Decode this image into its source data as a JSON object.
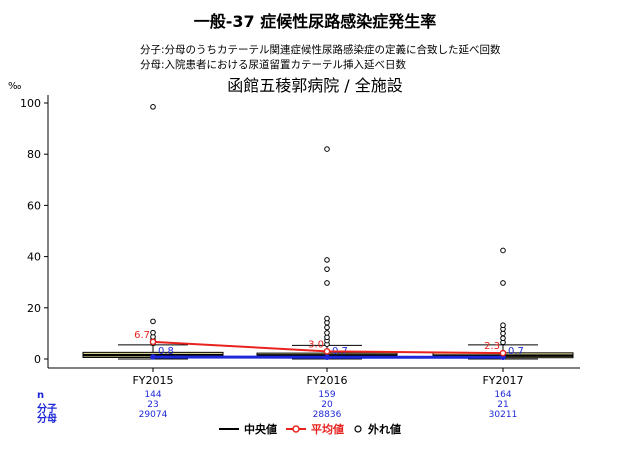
{
  "header": {
    "title": "一般-37 症候性尿路感染症発生率",
    "numerator_def": "分子:分母のうちカテーテル関連症候性尿路感染症の定義に合致した延べ回数",
    "denominator_def": "分母:入院患者における尿道留置カテーテル挿入延べ日数",
    "subtitle": "函館五稜郭病院 / 全施設",
    "y_unit": "‰"
  },
  "row_labels": {
    "n": "n",
    "numerator": "分子",
    "denominator": "分母"
  },
  "legend": {
    "median": "中央値",
    "mean": "平均値",
    "outlier": "外れ値"
  },
  "colors": {
    "median_line": "#000000",
    "mean_line": "#e8231f",
    "hospital_line": "#1e28d8",
    "box_fill": "#f2e8a0",
    "counts_text": "#1e28d8"
  },
  "chart_data": {
    "type": "box",
    "categories": [
      "FY2015",
      "FY2016",
      "FY2017"
    ],
    "ylim": [
      0,
      100
    ],
    "yticks": [
      0,
      20,
      40,
      60,
      80,
      100
    ],
    "boxes": [
      {
        "q1": 0.6,
        "median": 1.5,
        "q3": 2.6,
        "whisker_low": 0,
        "whisker_high": 5.5,
        "outliers": [
          6.1,
          7.5,
          8.7,
          10.3,
          14.7,
          98.5
        ]
      },
      {
        "q1": 0.5,
        "median": 1.4,
        "q3": 2.3,
        "whisker_low": 0,
        "whisker_high": 5.3,
        "outliers": [
          5.8,
          7.2,
          8.5,
          10.2,
          12.3,
          14.2,
          15.8,
          29.7,
          35.1,
          38.7,
          82.0
        ]
      },
      {
        "q1": 0.5,
        "median": 1.3,
        "q3": 2.4,
        "whisker_low": 0,
        "whisker_high": 5.5,
        "outliers": [
          6.5,
          8.1,
          10.0,
          11.7,
          13.2,
          29.7,
          42.4
        ]
      }
    ],
    "mean_series": {
      "name": "平均値",
      "values": [
        6.7,
        3.0,
        2.3
      ],
      "labels": [
        "6.7",
        "3.0",
        "2.3"
      ]
    },
    "hospital_series": {
      "values": [
        0.8,
        0.7,
        0.7
      ],
      "labels": [
        "0.8",
        "0.7",
        "0.7"
      ]
    },
    "counts": {
      "n": [
        "144",
        "159",
        "164"
      ],
      "numerator": [
        "23",
        "20",
        "21"
      ],
      "denominator": [
        "29074",
        "28836",
        "30211"
      ]
    }
  }
}
